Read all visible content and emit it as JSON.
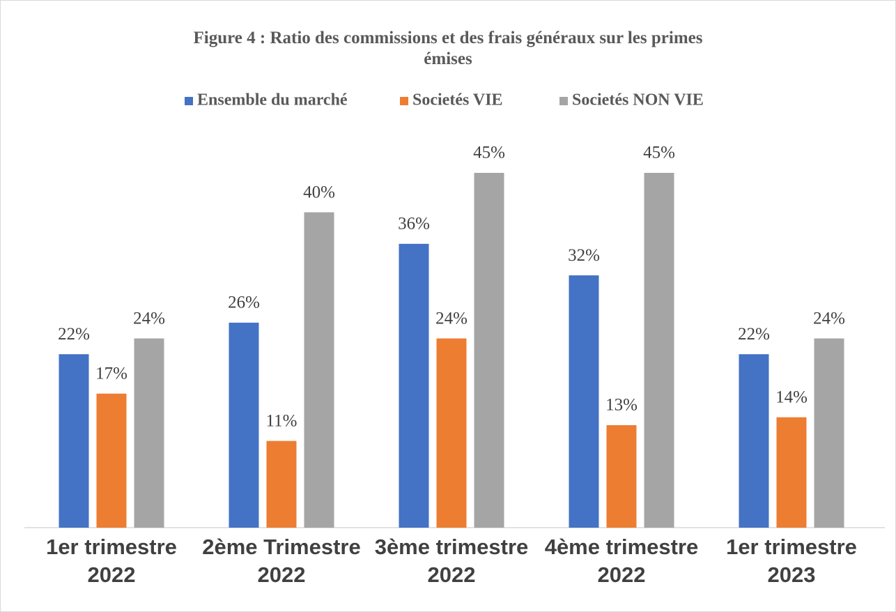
{
  "chart_data": {
    "type": "bar",
    "title": "Figure 4 : Ratio des commissions et des frais généraux sur les primes émises",
    "categories": [
      "1er trimestre 2022",
      "2ème Trimestre 2022",
      "3ème trimestre 2022",
      "4ème trimestre 2022",
      "1er trimestre 2023"
    ],
    "series": [
      {
        "name": "Ensemble du marché",
        "color": "#4472c4",
        "values": [
          22,
          26,
          36,
          32,
          22
        ],
        "value_labels": [
          "22%",
          "26%",
          "36%",
          "32%",
          "22%"
        ]
      },
      {
        "name": "Societés VIE",
        "color": "#ed7d31",
        "values": [
          17,
          11,
          24,
          13,
          14
        ],
        "value_labels": [
          "17%",
          "11%",
          "24%",
          "13%",
          "14%"
        ]
      },
      {
        "name": "Societés NON VIE",
        "color": "#a5a5a5",
        "values": [
          24,
          40,
          45,
          45,
          24
        ],
        "value_labels": [
          "24%",
          "40%",
          "45%",
          "45%",
          "24%"
        ]
      }
    ],
    "legend": "top"
  }
}
